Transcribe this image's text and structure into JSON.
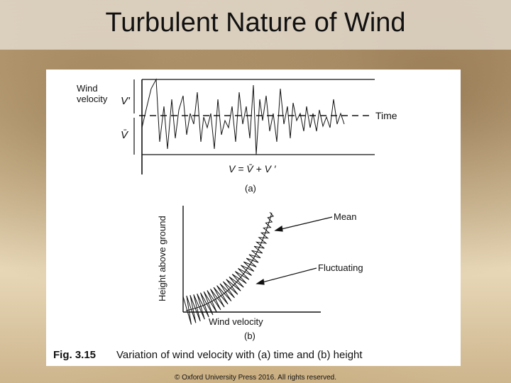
{
  "header": {
    "title": "Turbulent Nature of Wind"
  },
  "figure": {
    "panel_a": {
      "y_label": [
        "Wind",
        "velocity"
      ],
      "fluct_symbol": "V'",
      "mean_symbol": "V̄",
      "x_label": "Time",
      "equation": "V = V̄ + V ′",
      "caption": "(a)"
    },
    "panel_b": {
      "y_label": "Height above ground",
      "mean_label": "Mean",
      "fluct_label": "Fluctuating",
      "x_label": "Wind velocity",
      "caption": "(b)"
    },
    "caption": {
      "number": "Fig. 3.15",
      "text": "Variation of wind velocity with (a) time and (b) height"
    }
  },
  "footer": {
    "copyright": "© Oxford University Press 2016. All rights reserved."
  }
}
